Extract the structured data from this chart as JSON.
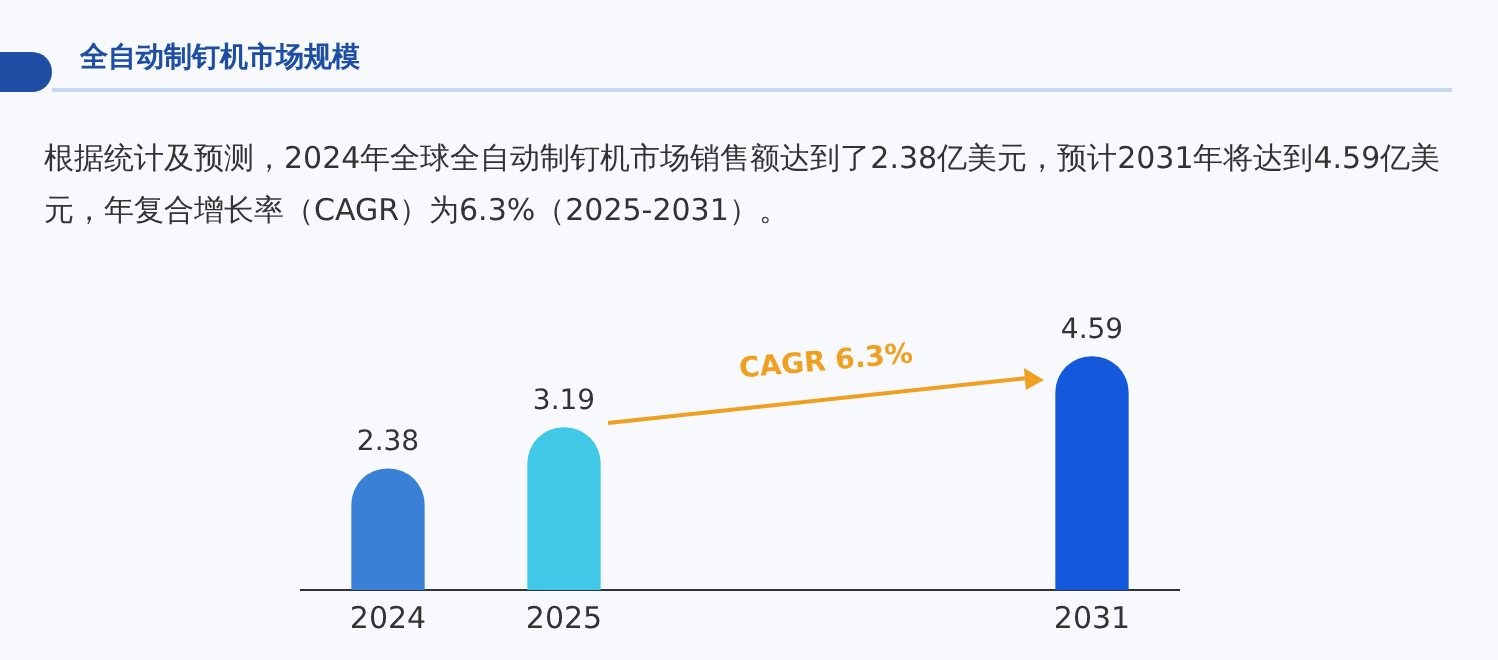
{
  "chart_data": {
    "type": "bar",
    "title": "全自动制钉机市场规模",
    "subtitle": "根据统计及预测，2024年全球全自动制钉机市场销售额达到了2.38亿美元，预计2031年将达到4.59亿美元，年复合增长率（CAGR）为6.3%（2025-2031）。",
    "categories": [
      "2024",
      "2025",
      null,
      null,
      "2031"
    ],
    "values": [
      2.38,
      3.19,
      null,
      null,
      4.59
    ],
    "colors": [
      "#3a80d6",
      "#40c8e6",
      "#3a80d6",
      "#3a80d6",
      "#1459db"
    ],
    "annotations": [
      "CAGR 6.3%"
    ],
    "data_labels": true,
    "grid": false,
    "legend": false,
    "tick_labels": "x"
  }
}
